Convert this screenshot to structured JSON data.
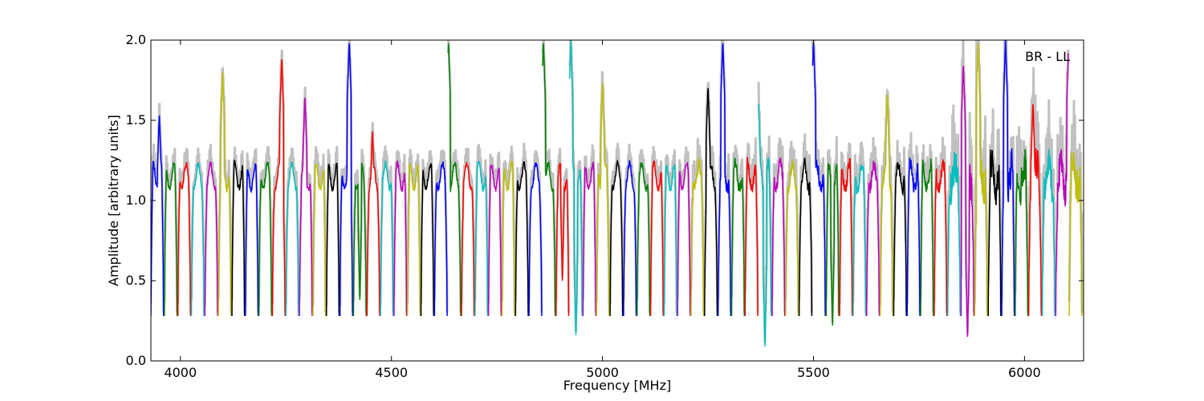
{
  "chart_data": {
    "type": "line",
    "title": "",
    "annotation": "BR - LL",
    "xlabel": "Frequency [MHz]",
    "ylabel": "Amplitude [arbitrary units]",
    "xlim": [
      3930,
      6140
    ],
    "ylim": [
      0.0,
      2.0
    ],
    "x_ticks": [
      4000,
      4500,
      5000,
      5500,
      6000
    ],
    "y_ticks": [
      0.0,
      0.5,
      1.0,
      1.5,
      2.0
    ],
    "x_tick_labels": [
      "4000",
      "4500",
      "5000",
      "5500",
      "6000"
    ],
    "y_tick_labels": [
      "0.0",
      "0.5",
      "1.0",
      "1.5",
      "2.0"
    ],
    "grid": false,
    "legend": "none",
    "background_color": "#c0c0c0",
    "series_colors": [
      "#0000ff",
      "#008000",
      "#ff0000",
      "#00bfbf",
      "#bf00bf",
      "#bfbf00",
      "#000000"
    ],
    "channel_width_mhz": 32,
    "channel_start_mhz": 3930,
    "channel_count": 69,
    "typical_level": 1.15,
    "typical_floor": 0.28,
    "notable_peaks": [
      {
        "x": 3950,
        "y": 1.55,
        "color": "#0000ff"
      },
      {
        "x": 4100,
        "y": 1.82,
        "color": "#bfbf00"
      },
      {
        "x": 4240,
        "y": 1.9,
        "color": "#ff0000"
      },
      {
        "x": 4295,
        "y": 1.66,
        "color": "#bf00bf"
      },
      {
        "x": 4400,
        "y": 2.0,
        "color": "#0000ff"
      },
      {
        "x": 4455,
        "y": 1.45,
        "color": "#ff0000"
      },
      {
        "x": 4635,
        "y": 2.0,
        "color": "#008000"
      },
      {
        "x": 4860,
        "y": 2.0,
        "color": "#bf00bf"
      },
      {
        "x": 4925,
        "y": 2.0,
        "color": "#00bfbf"
      },
      {
        "x": 5000,
        "y": 1.75,
        "color": "#008000"
      },
      {
        "x": 5250,
        "y": 1.72,
        "color": "#ff0000"
      },
      {
        "x": 5285,
        "y": 2.0,
        "color": "#00bfbf"
      },
      {
        "x": 5370,
        "y": 1.6,
        "color": "#000000"
      },
      {
        "x": 5500,
        "y": 2.0,
        "color": "#00bfbf"
      },
      {
        "x": 5675,
        "y": 1.68,
        "color": "#ff0000"
      },
      {
        "x": 5855,
        "y": 1.86,
        "color": "#0000ff"
      },
      {
        "x": 5890,
        "y": 2.0,
        "color": "#ff0000"
      },
      {
        "x": 5955,
        "y": 2.0,
        "color": "#bf00bf"
      },
      {
        "x": 6020,
        "y": 1.62,
        "color": "#000000"
      },
      {
        "x": 6105,
        "y": 2.0,
        "color": "#008000"
      }
    ],
    "notable_dips": [
      {
        "x": 4425,
        "y": 0.38
      },
      {
        "x": 4895,
        "y": 0.5
      },
      {
        "x": 4925,
        "y": 0.16
      },
      {
        "x": 5375,
        "y": 0.09
      },
      {
        "x": 5540,
        "y": 0.22
      },
      {
        "x": 5870,
        "y": 0.15
      }
    ]
  }
}
